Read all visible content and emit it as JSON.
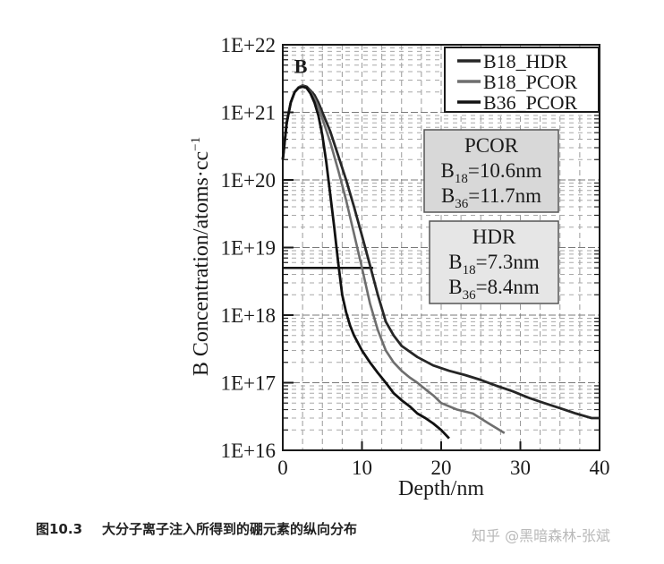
{
  "chart_data": {
    "type": "line",
    "xlabel": "Depth/nm",
    "ylabel": "B Concentration/atoms·cc⁻¹",
    "xlim": [
      0,
      40
    ],
    "ylim_log10": [
      16,
      22
    ],
    "y_scale": "log",
    "grid": true,
    "legend_position": "top-right",
    "x_ticks": [
      "0",
      "10",
      "20",
      "30",
      "40"
    ],
    "y_ticks": [
      "1E+16",
      "1E+17",
      "1E+18",
      "1E+19",
      "1E+20",
      "1E+21",
      "1E+22"
    ],
    "peak_marker": "B",
    "reference_line": {
      "y": 5e+18,
      "x_start": 0,
      "x_end": 11.4
    },
    "series": [
      {
        "name": "B18_HDR",
        "color": "#262626",
        "x": [
          0,
          0.5,
          1,
          1.5,
          2,
          2.5,
          3,
          3.5,
          4,
          4.5,
          5,
          6,
          7,
          8,
          9,
          10,
          11,
          12,
          13,
          14,
          15,
          17,
          19,
          21,
          23,
          25,
          27,
          29,
          31,
          33,
          35,
          37,
          39,
          40
        ],
        "y": [
          2e+20,
          7e+20,
          1.4e+21,
          2e+21,
          2.35e+21,
          2.5e+21,
          2.4e+21,
          2.1e+21,
          1.8e+21,
          1.4e+21,
          1e+21,
          5.2e+20,
          2.3e+20,
          1e+20,
          4e+19,
          1.5e+19,
          5.5e+18,
          2e+18,
          8e+17,
          5e+17,
          3.5e+17,
          2.4e+17,
          1.8e+17,
          1.5e+17,
          1.3e+17,
          1.1e+17,
          9e+16,
          7.5e+16,
          6e+16,
          5e+16,
          4.2e+16,
          3.5e+16,
          3e+16,
          3e+16
        ]
      },
      {
        "name": "B18_PCOR",
        "color": "#6e6e6e",
        "x": [
          0,
          0.5,
          1,
          1.5,
          2,
          2.5,
          3,
          3.5,
          4,
          4.5,
          5,
          6,
          7,
          8,
          9,
          10,
          11,
          12,
          13,
          14,
          15,
          16,
          17,
          18,
          19,
          20,
          22,
          24,
          26,
          28
        ],
        "y": [
          2e+20,
          7e+20,
          1.4e+21,
          2e+21,
          2.35e+21,
          2.45e+21,
          2.3e+21,
          2e+21,
          1.6e+21,
          1.2e+21,
          8e+20,
          3.6e+20,
          1.4e+20,
          5e+19,
          1.6e+19,
          5e+18,
          1.5e+18,
          6e+17,
          3e+17,
          2e+17,
          1.5e+17,
          1.2e+17,
          1e+17,
          8e+16,
          6.5e+16,
          5e+16,
          4e+16,
          3.5e+16,
          2.5e+16,
          1.8e+16
        ]
      },
      {
        "name": "B36_PCOR",
        "color": "#111111",
        "x": [
          0,
          0.5,
          1,
          1.5,
          2,
          2.5,
          3,
          3.5,
          4,
          4.5,
          5,
          5.5,
          6,
          6.5,
          7,
          7.5,
          8,
          8.5,
          9,
          10,
          11,
          12,
          13,
          14,
          15,
          16,
          17,
          18,
          19,
          20,
          21
        ],
        "y": [
          2e+20,
          7e+20,
          1.4e+21,
          2e+21,
          2.3e+21,
          2.4e+21,
          2.3e+21,
          1.9e+21,
          1.4e+21,
          9e+20,
          4.5e+20,
          1.8e+20,
          6e+19,
          2e+19,
          6e+18,
          2e+18,
          1.1e+18,
          7e+17,
          5e+17,
          3e+17,
          2e+17,
          1.4e+17,
          1e+17,
          7e+16,
          5.5e+16,
          4.5e+16,
          3.5e+16,
          3e+16,
          2.5e+16,
          2e+16,
          1.5e+16
        ]
      }
    ],
    "annotations": [
      {
        "title": "PCOR",
        "lines": [
          {
            "sym": "B",
            "sub": "18",
            "val": "=10.6nm"
          },
          {
            "sym": "B",
            "sub": "36",
            "val": "=11.7nm"
          }
        ],
        "fill": "#d8d8d8"
      },
      {
        "title": "HDR",
        "lines": [
          {
            "sym": "B",
            "sub": "18",
            "val": "=7.3nm"
          },
          {
            "sym": "B",
            "sub": "36",
            "val": "=8.4nm"
          }
        ],
        "fill": "#e6e6e6"
      }
    ]
  },
  "caption": {
    "figure_number": "图10.3",
    "text": "大分子离子注入所得到的硼元素的纵向分布"
  },
  "watermark": "知乎 @黑暗森林-张斌"
}
